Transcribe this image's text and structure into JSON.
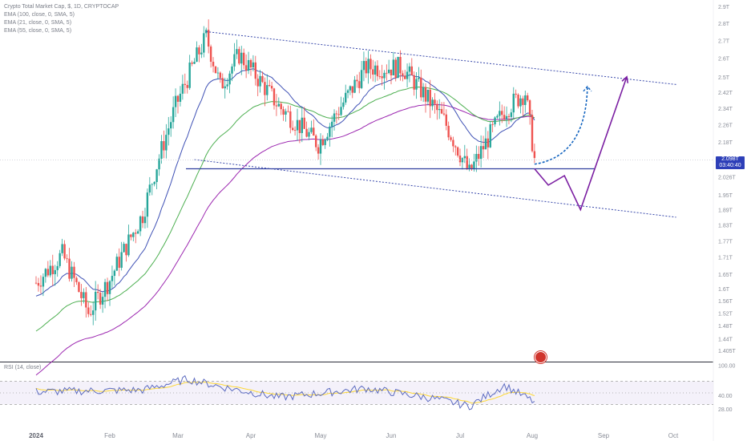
{
  "legend": {
    "title": "Crypto Total Market Cap, $, 1D, CRYPTOCAP",
    "ema1": "EMA (100, close, 0, SMA, 5)",
    "ema2": "EMA (21, close, 0, SMA, 5)",
    "ema3": "EMA (55, close, 0, SMA, 5)"
  },
  "rsi": {
    "title": "RSI (14, close)"
  },
  "price_tag": {
    "value": "2.098T",
    "countdown": "03:40:40"
  },
  "colors": {
    "up": "#26a69a",
    "down": "#ef5350",
    "ema100": "#9c27b0",
    "ema21": "#3f51b5",
    "ema55": "#4caf50",
    "projection": "#7b1fa2",
    "bullish_arrow": "#1565c0",
    "support": "#303f9f",
    "channel": "#3949ab",
    "rsi_line": "#5c6bc0",
    "rsi_ma": "#fdd835"
  },
  "chart_data": [
    {
      "type": "candlestick",
      "title": "Crypto Total Market Cap, $, 1D, CRYPTOCAP",
      "y_scale": "log",
      "y_ticks": [
        "2.9T",
        "2.8T",
        "2.7T",
        "2.6T",
        "2.5T",
        "2.42T",
        "2.34T",
        "2.26T",
        "2.18T",
        "2.026T",
        "1.95T",
        "1.89T",
        "1.83T",
        "1.77T",
        "1.71T",
        "1.65T",
        "1.6T",
        "1.56T",
        "1.52T",
        "1.48T",
        "1.44T",
        "1.405T"
      ],
      "x_ticks": [
        "2024",
        "Feb",
        "Mar",
        "Apr",
        "May",
        "Jun",
        "Jul",
        "Aug",
        "Sep",
        "Oct"
      ],
      "current_value": "2.098T",
      "approx_trend_points": [
        {
          "date": "2024-01-01",
          "close": 1.62
        },
        {
          "date": "2024-01-12",
          "close": 1.72
        },
        {
          "date": "2024-01-23",
          "close": 1.52
        },
        {
          "date": "2024-02-01",
          "close": 1.63
        },
        {
          "date": "2024-02-15",
          "close": 1.87
        },
        {
          "date": "2024-02-29",
          "close": 2.35
        },
        {
          "date": "2024-03-13",
          "close": 2.72
        },
        {
          "date": "2024-03-19",
          "close": 2.45
        },
        {
          "date": "2024-03-27",
          "close": 2.62
        },
        {
          "date": "2024-04-13",
          "close": 2.35
        },
        {
          "date": "2024-04-30",
          "close": 2.17
        },
        {
          "date": "2024-05-21",
          "close": 2.55
        },
        {
          "date": "2024-06-06",
          "close": 2.55
        },
        {
          "date": "2024-06-24",
          "close": 2.28
        },
        {
          "date": "2024-07-05",
          "close": 2.04
        },
        {
          "date": "2024-07-20",
          "close": 2.33
        },
        {
          "date": "2024-07-29",
          "close": 2.42
        },
        {
          "date": "2024-08-02",
          "close": 2.1
        }
      ],
      "series": [
        {
          "name": "EMA (100, close, 0, SMA, 5)",
          "color": "#9c27b0"
        },
        {
          "name": "EMA (21, close, 0, SMA, 5)",
          "color": "#3f51b5"
        },
        {
          "name": "EMA (55, close, 0, SMA, 5)",
          "color": "#4caf50"
        }
      ],
      "drawings": [
        {
          "kind": "horizontal_support",
          "value": 2.06
        },
        {
          "kind": "channel_upper",
          "from": {
            "date": "2024-03-13",
            "value": 2.75
          },
          "to": {
            "date": "2024-09-15",
            "value": 2.46
          }
        },
        {
          "kind": "channel_lower",
          "from": {
            "date": "2024-03-08",
            "value": 2.1
          },
          "to": {
            "date": "2024-09-15",
            "value": 1.86
          }
        },
        {
          "kind": "projection_path",
          "points": [
            {
              "date": "2024-08-02",
              "value": 2.06
            },
            {
              "date": "2024-08-08",
              "value": 1.99
            },
            {
              "date": "2024-08-15",
              "value": 2.03
            },
            {
              "date": "2024-08-22",
              "value": 1.89
            },
            {
              "date": "2024-09-11",
              "value": 2.5
            }
          ]
        },
        {
          "kind": "bullish_arrow_dashed",
          "from": {
            "date": "2024-08-02",
            "value": 2.08
          },
          "to": {
            "date": "2024-08-25",
            "value": 2.45
          }
        }
      ]
    },
    {
      "type": "line",
      "title": "RSI (14, close)",
      "y_ticks": [
        "100.00",
        "40.00",
        "28.00"
      ],
      "bands": [
        70,
        50,
        30
      ],
      "approx_points": [
        {
          "date": "2024-01-01",
          "value": 52
        },
        {
          "date": "2024-02-15",
          "value": 55
        },
        {
          "date": "2024-03-05",
          "value": 74
        },
        {
          "date": "2024-03-20",
          "value": 60
        },
        {
          "date": "2024-04-13",
          "value": 42
        },
        {
          "date": "2024-05-21",
          "value": 58
        },
        {
          "date": "2024-06-20",
          "value": 40
        },
        {
          "date": "2024-07-05",
          "value": 27
        },
        {
          "date": "2024-07-20",
          "value": 63
        },
        {
          "date": "2024-08-02",
          "value": 34
        }
      ]
    }
  ]
}
